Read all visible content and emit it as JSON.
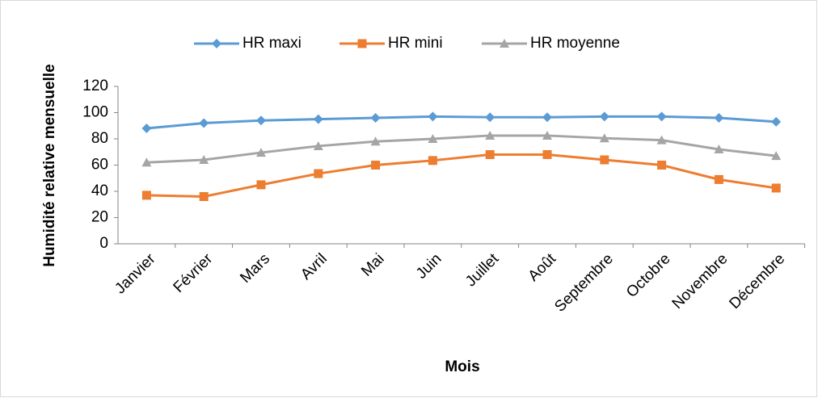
{
  "chart_data": {
    "type": "line",
    "x_label": "Mois",
    "y_label": "Humidité relative mensuelle",
    "categories": [
      "Janvier",
      "Février",
      "Mars",
      "Avril",
      "Mai",
      "Juin",
      "Juillet",
      "Août",
      "Septembre",
      "Octobre",
      "Novembre",
      "Décembre"
    ],
    "series": [
      {
        "name": "HR maxi",
        "color": "#5b9bd5",
        "marker": "diamond",
        "values": [
          88,
          92,
          94,
          95,
          96,
          97,
          96.5,
          96.5,
          97,
          97,
          96,
          93
        ]
      },
      {
        "name": "HR mini",
        "color": "#ed7d31",
        "marker": "square",
        "values": [
          37,
          36,
          45,
          53.5,
          60,
          63.5,
          68,
          68,
          64,
          60,
          49,
          42.5
        ]
      },
      {
        "name": "HR moyenne",
        "color": "#a5a5a5",
        "marker": "triangle",
        "values": [
          62,
          64,
          69.5,
          74.5,
          78,
          80,
          82.5,
          82.5,
          80.5,
          79,
          72,
          67
        ]
      }
    ],
    "ylim": [
      0,
      120
    ],
    "yticks": [
      0,
      20,
      40,
      60,
      80,
      100,
      120
    ],
    "grid": false,
    "legend": "top"
  }
}
